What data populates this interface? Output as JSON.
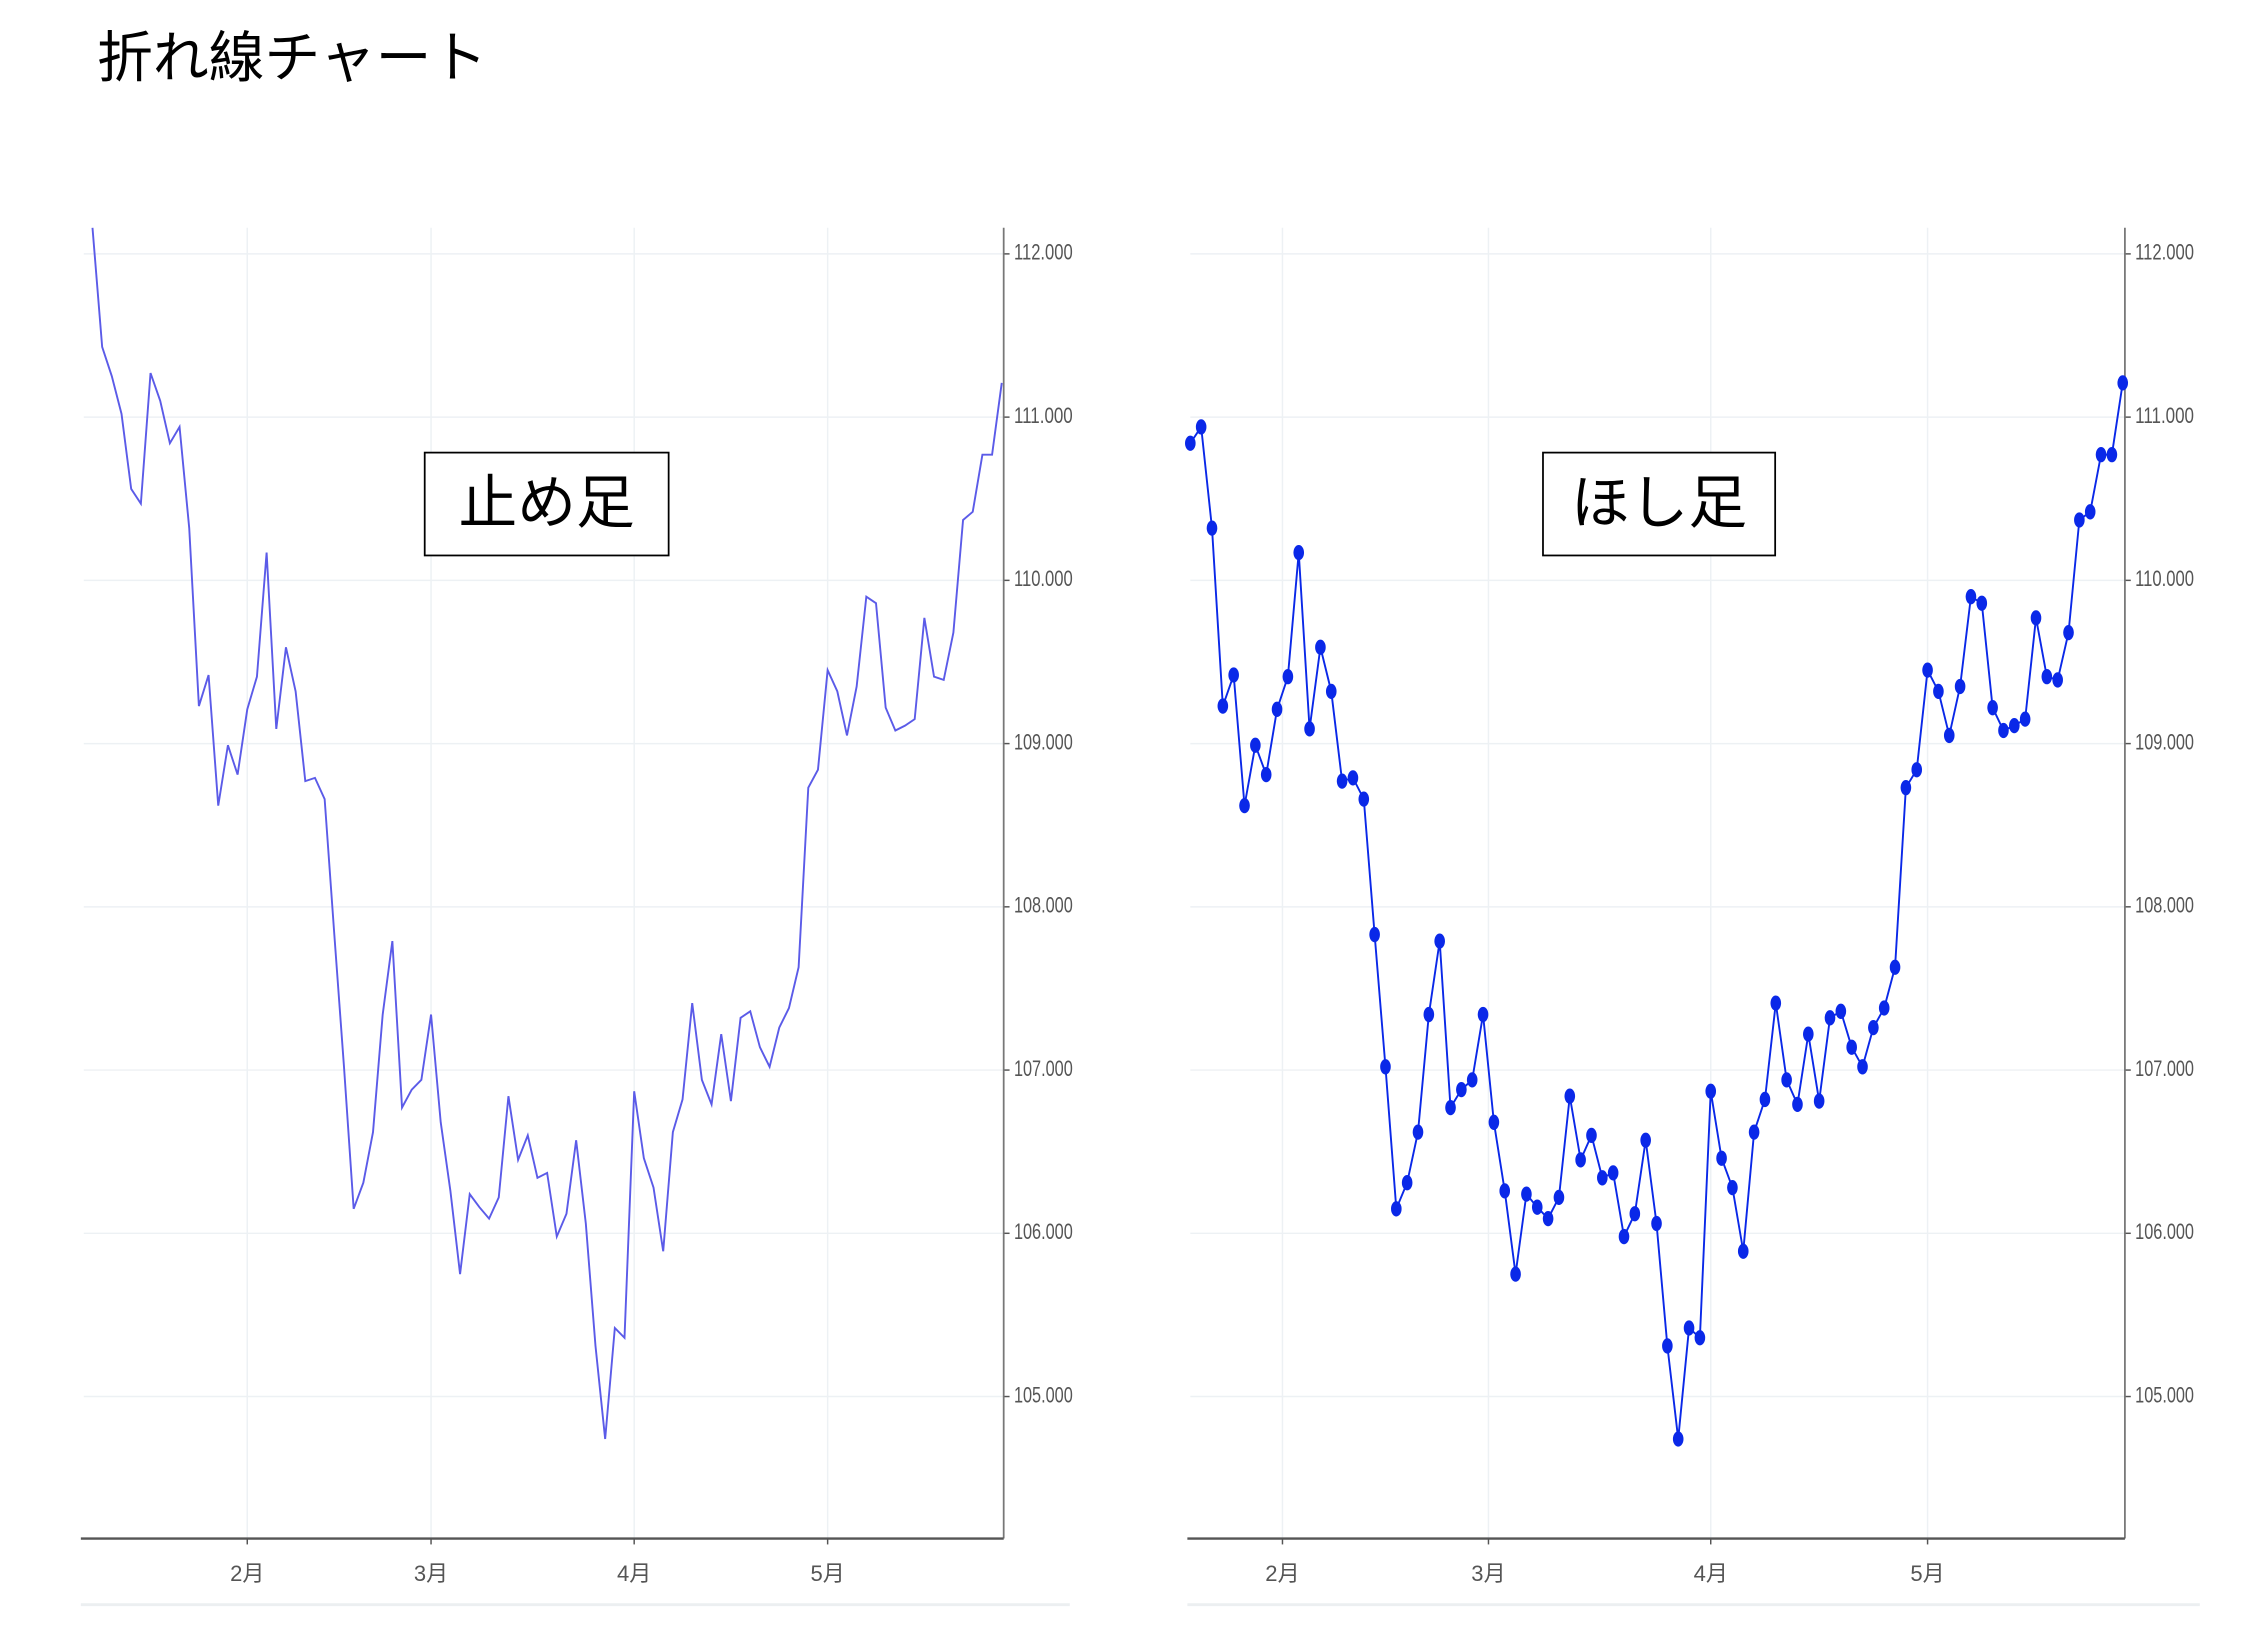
{
  "page_title": "折れ線チャート",
  "chart_data": [
    {
      "type": "line",
      "annotation": "止め足",
      "color": "#5b5be8",
      "markers": false,
      "values": [
        112.16,
        111.43,
        111.25,
        111.02,
        110.56,
        110.47,
        111.27,
        111.1,
        110.84,
        110.94,
        110.32,
        109.23,
        109.42,
        108.62,
        108.99,
        108.81,
        109.21,
        109.41,
        110.17,
        109.09,
        109.59,
        109.32,
        108.77,
        108.79,
        108.66,
        107.83,
        107.02,
        106.15,
        106.31,
        106.62,
        107.34,
        107.79,
        106.77,
        106.88,
        106.94,
        107.34,
        106.68,
        106.26,
        105.75,
        106.24,
        106.16,
        106.09,
        106.22,
        106.84,
        106.45,
        106.6,
        106.34,
        106.37,
        105.98,
        106.12,
        106.57,
        106.06,
        105.31,
        104.74,
        105.42,
        105.36,
        106.87,
        106.46,
        106.28,
        105.89,
        106.62,
        106.82,
        107.41,
        106.94,
        106.79,
        107.22,
        106.81,
        107.32,
        107.36,
        107.14,
        107.02,
        107.26,
        107.38,
        107.63,
        108.73,
        108.84,
        109.45,
        109.32,
        109.05,
        109.35,
        109.9,
        109.86,
        109.22,
        109.08,
        109.11,
        109.15,
        109.77,
        109.41,
        109.39,
        109.68,
        110.37,
        110.42,
        110.77,
        110.77,
        111.21
      ],
      "xlim": [
        -0.9,
        94.2
      ],
      "xticks": [
        {
          "value": 16,
          "label": "2月"
        },
        {
          "value": 35,
          "label": "3月"
        },
        {
          "value": 56,
          "label": "4月"
        },
        {
          "value": 76,
          "label": "5月"
        }
      ],
      "ylim": [
        104.13,
        112.16
      ],
      "yticks": [
        {
          "value": 105,
          "label": "105.000"
        },
        {
          "value": 106,
          "label": "106.000"
        },
        {
          "value": 107,
          "label": "107.000"
        },
        {
          "value": 108,
          "label": "108.000"
        },
        {
          "value": 109,
          "label": "109.000"
        },
        {
          "value": 110,
          "label": "110.000"
        },
        {
          "value": 111,
          "label": "111.000"
        },
        {
          "value": 112,
          "label": "112.000"
        }
      ],
      "grid": true
    },
    {
      "type": "line",
      "annotation": "ほし足",
      "color": "#0a28e8",
      "markers": true,
      "values": [
        110.84,
        110.94,
        110.32,
        109.23,
        109.42,
        108.62,
        108.99,
        108.81,
        109.21,
        109.41,
        110.17,
        109.09,
        109.59,
        109.32,
        108.77,
        108.79,
        108.66,
        107.83,
        107.02,
        106.15,
        106.31,
        106.62,
        107.34,
        107.79,
        106.77,
        106.88,
        106.94,
        107.34,
        106.68,
        106.26,
        105.75,
        106.24,
        106.16,
        106.09,
        106.22,
        106.84,
        106.45,
        106.6,
        106.34,
        106.37,
        105.98,
        106.12,
        106.57,
        106.06,
        105.31,
        104.74,
        105.42,
        105.36,
        106.87,
        106.46,
        106.28,
        105.89,
        106.62,
        106.82,
        107.41,
        106.94,
        106.79,
        107.22,
        106.81,
        107.32,
        107.36,
        107.14,
        107.02,
        107.26,
        107.38,
        107.63,
        108.73,
        108.84,
        109.45,
        109.32,
        109.05,
        109.35,
        109.9,
        109.86,
        109.22,
        109.08,
        109.11,
        109.15,
        109.77,
        109.41,
        109.39,
        109.68,
        110.37,
        110.42,
        110.77,
        110.77,
        111.21
      ],
      "xlim": [
        0,
        86.2
      ],
      "xticks": [
        {
          "value": 8.5,
          "label": "2月"
        },
        {
          "value": 27.5,
          "label": "3月"
        },
        {
          "value": 48,
          "label": "4月"
        },
        {
          "value": 68,
          "label": "5月"
        }
      ],
      "ylim": [
        104.13,
        112.16
      ],
      "yticks": [
        {
          "value": 105,
          "label": "105.000"
        },
        {
          "value": 106,
          "label": "106.000"
        },
        {
          "value": 107,
          "label": "107.000"
        },
        {
          "value": 108,
          "label": "108.000"
        },
        {
          "value": 109,
          "label": "109.000"
        },
        {
          "value": 110,
          "label": "110.000"
        },
        {
          "value": 111,
          "label": "111.000"
        },
        {
          "value": 112,
          "label": "112.000"
        }
      ],
      "grid": true
    }
  ]
}
